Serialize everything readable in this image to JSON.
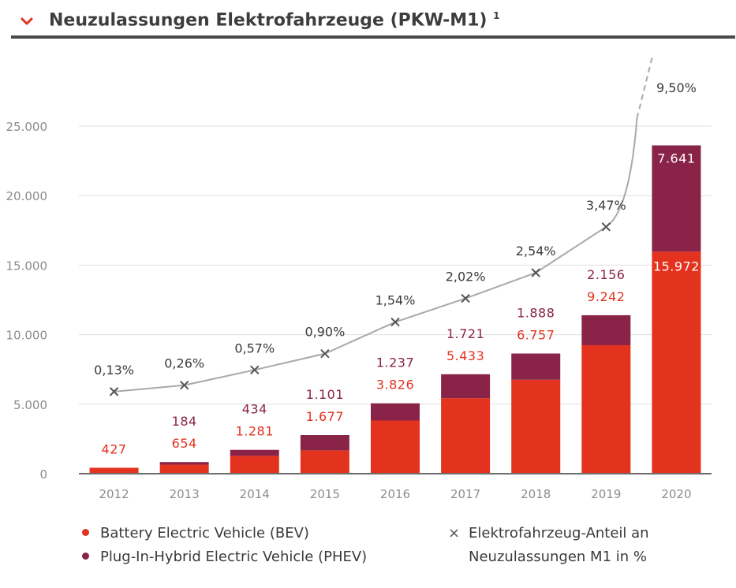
{
  "header": {
    "title": "Neuzulassungen Elektrofahrzeuge (PKW-M1)",
    "footnote": "1",
    "icon": "chevron-down-icon"
  },
  "colors": {
    "bev": "#e3321e",
    "phev": "#8a2348",
    "line": "#a9a9a9",
    "axis_text": "#8c8c8c",
    "grid": "#e0e0e0"
  },
  "chart_data": {
    "type": "bar",
    "stacked": true,
    "categories": [
      "2012",
      "2013",
      "2014",
      "2015",
      "2016",
      "2017",
      "2018",
      "2019",
      "2020"
    ],
    "series": [
      {
        "name": "Battery Electric Vehicle (BEV)",
        "values": [
          427,
          654,
          1281,
          1677,
          3826,
          5433,
          6757,
          9242,
          15972
        ],
        "labels": [
          "427",
          "654",
          "1.281",
          "1.677",
          "3.826",
          "5.433",
          "6.757",
          "9.242",
          "15.972"
        ]
      },
      {
        "name": "Plug-In-Hybrid Electric Vehicle (PHEV)",
        "values": [
          0,
          184,
          434,
          1101,
          1237,
          1721,
          1888,
          2156,
          7641
        ],
        "labels": [
          "",
          "184",
          "434",
          "1.101",
          "1.237",
          "1.721",
          "1.888",
          "2.156",
          "7.641"
        ]
      }
    ],
    "share_line": {
      "name": "Elektrofahrzeug-Anteil an Neuzulassungen M1 in %",
      "values": [
        0.13,
        0.26,
        0.57,
        0.9,
        1.54,
        2.02,
        2.54,
        3.47,
        9.5
      ],
      "labels": [
        "0,13%",
        "0,26%",
        "0,57%",
        "0,90%",
        "1,54%",
        "2,02%",
        "2,54%",
        "3,47%",
        "9,50%"
      ]
    },
    "ylim": [
      0,
      25000
    ],
    "yticks": [
      0,
      5000,
      10000,
      15000,
      20000,
      25000
    ],
    "ytick_labels": [
      "0",
      "5.000",
      "10.000",
      "15.000",
      "20.000",
      "25.000"
    ],
    "grid": true,
    "legend": {
      "bev": "Battery Electric Vehicle (BEV)",
      "phev": "Plug-In-Hybrid Electric Vehicle (PHEV)",
      "share_line1": "Elektrofahrzeug-Anteil an",
      "share_line2": "Neuzulassungen M1 in %",
      "placement": "bottom"
    }
  }
}
